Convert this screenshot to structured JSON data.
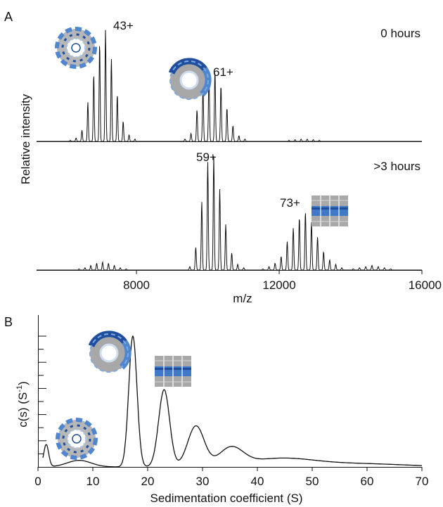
{
  "colors": {
    "line": "#111111",
    "protein_dark": "#1f4e9e",
    "protein_mid": "#4f86cf",
    "protein_light": "#a9c8ee",
    "protein_grey": "#9a9a9a"
  },
  "chart_data": [
    {
      "panel": "A",
      "type": "line",
      "xlabel": "m/z",
      "ylabel": "Relative intensity",
      "xlim": [
        5200,
        16000
      ],
      "xticks": [
        8000,
        12000,
        16000
      ],
      "xtick_labels": [
        "8000",
        "12000",
        "16000"
      ],
      "grid": false,
      "icons": [
        "ring-complex-icon",
        "ring-complex-icon",
        "stacked-complex-icon"
      ],
      "spectra": [
        {
          "condition": "0 hours",
          "annotations": [
            {
              "label": "43+",
              "x": 7050
            },
            {
              "label": "61+",
              "x": 10200
            }
          ],
          "peak_series": [
            {
              "center": 7050,
              "spacing": 165,
              "sigma": 14,
              "amplitudes": [
                0.01,
                0.03,
                0.1,
                0.35,
                0.6,
                0.88,
                1.0,
                0.74,
                0.42,
                0.18,
                0.06,
                0.02
              ]
            },
            {
              "center": 10200,
              "spacing": 168,
              "sigma": 15,
              "amplitudes": [
                0.02,
                0.07,
                0.28,
                0.47,
                0.6,
                0.63,
                0.5,
                0.3,
                0.14,
                0.05,
                0.02
              ]
            },
            {
              "center": 12700,
              "spacing": 170,
              "sigma": 14,
              "amplitudes": [
                0.01,
                0.015,
                0.02,
                0.02,
                0.015,
                0.01
              ]
            }
          ]
        },
        {
          "condition": ">3 hours",
          "annotations": [
            {
              "label": "59+",
              "x": 10150
            },
            {
              "label": "73+",
              "x": 12650
            }
          ],
          "peak_series": [
            {
              "center": 7050,
              "spacing": 165,
              "sigma": 14,
              "amplitudes": [
                0.01,
                0.02,
                0.04,
                0.06,
                0.07,
                0.06,
                0.04,
                0.02,
                0.01
              ]
            },
            {
              "center": 10250,
              "spacing": 168,
              "sigma": 15,
              "amplitudes": [
                0.03,
                0.2,
                0.6,
                0.95,
                1.0,
                0.71,
                0.4,
                0.15,
                0.05,
                0.02
              ]
            },
            {
              "center": 12650,
              "spacing": 170,
              "sigma": 15,
              "amplitudes": [
                0.01,
                0.03,
                0.06,
                0.12,
                0.25,
                0.37,
                0.46,
                0.51,
                0.42,
                0.29,
                0.16,
                0.09,
                0.05,
                0.02
              ]
            },
            {
              "center": 14600,
              "spacing": 175,
              "sigma": 16,
              "amplitudes": [
                0.01,
                0.02,
                0.03,
                0.04,
                0.03,
                0.02,
                0.01
              ]
            }
          ]
        }
      ]
    },
    {
      "panel": "B",
      "type": "line",
      "xlabel": "Sedimentation coefficient (S)",
      "ylabel_main": "c(s) (S",
      "ylabel_sup": "-1",
      "ylabel_close": ")",
      "xlim": [
        0,
        70
      ],
      "ylim": [
        0,
        1.0
      ],
      "xticks": [
        0,
        10,
        20,
        30,
        40,
        50,
        60,
        70
      ],
      "xtick_labels": [
        "0",
        "10",
        "20",
        "30",
        "40",
        "50",
        "60",
        "70"
      ],
      "y_minor_tick_count": 10,
      "grid": false,
      "icons": [
        "ring-complex-icon",
        "ring-complex-icon",
        "stacked-complex-icon"
      ],
      "components": [
        {
          "s": 1.5,
          "height": 0.17,
          "width": 0.45
        },
        {
          "s": 7.5,
          "height": 0.05,
          "width": 2.2
        },
        {
          "s": 17.3,
          "height": 1.0,
          "width": 0.75
        },
        {
          "s": 23.0,
          "height": 0.59,
          "width": 1.0
        },
        {
          "s": 28.8,
          "height": 0.31,
          "width": 1.5
        },
        {
          "s": 35.2,
          "height": 0.135,
          "width": 2.2
        },
        {
          "s": 44.0,
          "height": 0.06,
          "width": 6.0
        },
        {
          "s": 58.0,
          "height": 0.025,
          "width": 9.0
        }
      ]
    }
  ]
}
